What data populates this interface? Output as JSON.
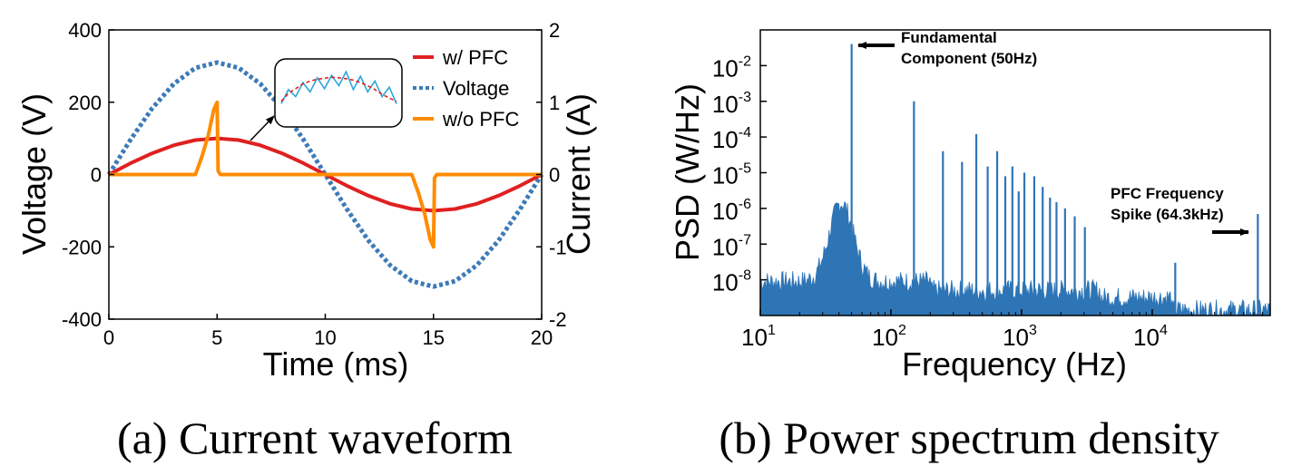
{
  "chart_data": [
    {
      "type": "line",
      "caption": "(a) Current waveform",
      "xlabel": "Time (ms)",
      "ylabel": "Voltage (V)",
      "y2label": "Current (A)",
      "xlim": [
        0,
        20
      ],
      "ylim": [
        -400,
        400
      ],
      "y2lim": [
        -2,
        2
      ],
      "xticks": [
        "0",
        "5",
        "10",
        "15",
        "20"
      ],
      "yticks": [
        "400",
        "200",
        "0",
        "-200",
        "-400"
      ],
      "y2ticks": [
        "2",
        "1",
        "0",
        "-1",
        "-2"
      ],
      "legend_position": "top-right",
      "series": [
        {
          "name": "w/ PFC",
          "axis": "right",
          "color": "#e02020",
          "style": "solid",
          "x": [
            0,
            1,
            2,
            3,
            4,
            5,
            6,
            7,
            8,
            9,
            10,
            11,
            12,
            13,
            14,
            15,
            16,
            17,
            18,
            19,
            20
          ],
          "y": [
            0,
            0.156,
            0.294,
            0.405,
            0.476,
            0.5,
            0.476,
            0.405,
            0.294,
            0.156,
            0,
            -0.156,
            -0.294,
            -0.405,
            -0.476,
            -0.5,
            -0.476,
            -0.405,
            -0.294,
            -0.156,
            0
          ]
        },
        {
          "name": "Voltage",
          "axis": "left",
          "color": "#3c7ab8",
          "style": "dotted",
          "x": [
            0,
            1,
            2,
            3,
            4,
            5,
            6,
            7,
            8,
            9,
            10,
            11,
            12,
            13,
            14,
            15,
            16,
            17,
            18,
            19,
            20
          ],
          "y": [
            0,
            96,
            183,
            251,
            295,
            310,
            295,
            251,
            183,
            96,
            0,
            -96,
            -183,
            -251,
            -295,
            -310,
            -295,
            -251,
            -183,
            -96,
            0
          ]
        },
        {
          "name": "w/o PFC",
          "axis": "right",
          "color": "#ff8c00",
          "style": "solid",
          "x": [
            0,
            4,
            4.3,
            4.6,
            4.85,
            5,
            5.05,
            5.15,
            14,
            14.3,
            14.6,
            14.85,
            15,
            15.05,
            15.15,
            20
          ],
          "y": [
            0,
            0,
            0.25,
            0.55,
            0.9,
            1.0,
            0.05,
            0,
            0,
            -0.25,
            -0.55,
            -0.9,
            -1.0,
            -0.05,
            0,
            0
          ]
        }
      ],
      "inset": {
        "description_series": [
          "ripple",
          "average"
        ],
        "ripple": [
          0.3,
          0.6,
          0.45,
          0.75,
          0.55,
          0.85,
          0.62,
          0.9,
          0.68,
          0.98,
          0.6,
          0.88,
          0.55,
          0.78,
          0.45,
          0.65,
          0.3
        ],
        "average": [
          0.35,
          0.52,
          0.62,
          0.72,
          0.78,
          0.82,
          0.84,
          0.86,
          0.85,
          0.83,
          0.8,
          0.75,
          0.68,
          0.6,
          0.5,
          0.42,
          0.35
        ]
      }
    },
    {
      "type": "line",
      "caption": "(b) Power spectrum density",
      "xlabel": "Frequency (Hz)",
      "ylabel": "PSD (W/Hz)",
      "xscale": "log",
      "yscale": "log",
      "xlim": [
        10,
        80000
      ],
      "ylim": [
        1e-09,
        0.1
      ],
      "xticks": [
        {
          "base": "10",
          "exp": "1"
        },
        {
          "base": "10",
          "exp": "2"
        },
        {
          "base": "10",
          "exp": "3"
        },
        {
          "base": "10",
          "exp": "4"
        }
      ],
      "yticks": [
        {
          "base": "10",
          "exp": "-2"
        },
        {
          "base": "10",
          "exp": "-3"
        },
        {
          "base": "10",
          "exp": "-4"
        },
        {
          "base": "10",
          "exp": "-5"
        },
        {
          "base": "10",
          "exp": "-6"
        },
        {
          "base": "10",
          "exp": "-7"
        },
        {
          "base": "10",
          "exp": "-8"
        }
      ],
      "color": "#2e75b6",
      "spikes": [
        {
          "f": 50,
          "psd": 0.04
        },
        {
          "f": 150,
          "psd": 0.001
        },
        {
          "f": 250,
          "psd": 4e-05
        },
        {
          "f": 350,
          "psd": 2e-05
        },
        {
          "f": 450,
          "psd": 0.00012
        },
        {
          "f": 550,
          "psd": 1.5e-05
        },
        {
          "f": 650,
          "psd": 4e-05
        },
        {
          "f": 750,
          "psd": 8e-06
        },
        {
          "f": 850,
          "psd": 1.5e-05
        },
        {
          "f": 950,
          "psd": 3e-06
        },
        {
          "f": 1050,
          "psd": 1e-05
        },
        {
          "f": 1250,
          "psd": 8e-06
        },
        {
          "f": 1450,
          "psd": 4e-06
        },
        {
          "f": 1650,
          "psd": 2e-06
        },
        {
          "f": 1850,
          "psd": 1.5e-06
        },
        {
          "f": 2150,
          "psd": 1e-06
        },
        {
          "f": 2550,
          "psd": 6e-07
        },
        {
          "f": 3050,
          "psd": 3e-07
        },
        {
          "f": 15000,
          "psd": 3e-08
        },
        {
          "f": 64300,
          "psd": 7e-07
        }
      ],
      "annotations": [
        {
          "lines": [
            "Fundamental",
            "Component (50Hz)"
          ]
        },
        {
          "lines": [
            "PFC  Frequency",
            "Spike (64.3kHz)"
          ]
        }
      ]
    }
  ]
}
